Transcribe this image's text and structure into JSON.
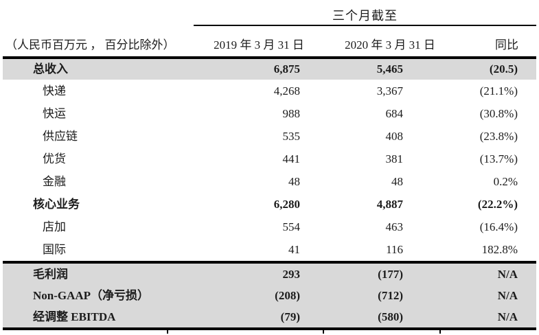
{
  "page": {
    "background": "#ffffff",
    "text_color": "#1c1c1c"
  },
  "colors": {
    "shaded_row_bg": "#d9d9d9",
    "rule_color": "#000000"
  },
  "chart_data": {
    "type": "table",
    "title": "三个月截至",
    "unit_note": "（人民币百万元 ， 百分比除外）",
    "columns": [
      "2019 年 3 月 31 日",
      "2020 年 3 月 31 日",
      "同比"
    ],
    "main_rows": [
      {
        "label": "总收入",
        "bold": true,
        "shaded": true,
        "indent": 0,
        "values": [
          "6,875",
          "5,465",
          "(20.5)"
        ]
      },
      {
        "label": "快递",
        "bold": false,
        "shaded": false,
        "indent": 1,
        "values": [
          "4,268",
          "3,367",
          "(21.1%)"
        ]
      },
      {
        "label": "快运",
        "bold": false,
        "shaded": false,
        "indent": 1,
        "values": [
          "988",
          "684",
          "(30.8%)"
        ]
      },
      {
        "label": "供应链",
        "bold": false,
        "shaded": false,
        "indent": 1,
        "values": [
          "535",
          "408",
          "(23.8%)"
        ]
      },
      {
        "label": "优货",
        "bold": false,
        "shaded": false,
        "indent": 1,
        "values": [
          "441",
          "381",
          "(13.7%)"
        ]
      },
      {
        "label": "金融",
        "bold": false,
        "shaded": false,
        "indent": 1,
        "values": [
          "48",
          "48",
          "0.2%"
        ]
      },
      {
        "label": "核心业务",
        "bold": true,
        "shaded": false,
        "indent": 0,
        "values": [
          "6,280",
          "4,887",
          "(22.2%)"
        ]
      },
      {
        "label": "店加",
        "bold": false,
        "shaded": false,
        "indent": 1,
        "values": [
          "554",
          "463",
          "(16.4%)"
        ]
      },
      {
        "label": "国际",
        "bold": false,
        "shaded": false,
        "indent": 1,
        "values": [
          "41",
          "116",
          "182.8%"
        ]
      }
    ],
    "summary_rows": [
      {
        "label": "毛利润",
        "bold": true,
        "values": [
          "293",
          "(177)",
          "N/A"
        ]
      },
      {
        "label": "Non-GAAP（净亏损）",
        "bold": true,
        "values": [
          "(208)",
          "(712)",
          "N/A"
        ]
      },
      {
        "label": "经调整 EBITDA",
        "bold": true,
        "values": [
          "(79)",
          "(580)",
          "N/A"
        ]
      }
    ]
  }
}
